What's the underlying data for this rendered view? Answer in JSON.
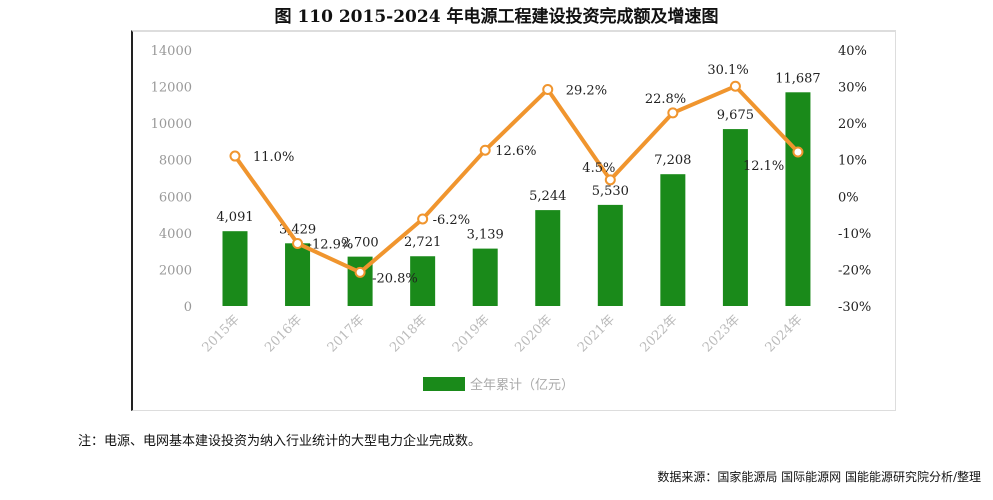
{
  "title": "图 110 2015-2024 年电源工程建设投资完成额及增速图",
  "note": "注：电源、电网基本建设投资为纳入行业统计的大型电力企业完成数。",
  "source": "数据来源：国家能源局 国际能源网 国能能源研究院分析/整理",
  "chart_data": {
    "type": "bar+line",
    "categories": [
      "2015年",
      "2016年",
      "2017年",
      "2018年",
      "2019年",
      "2020年",
      "2021年",
      "2022年",
      "2023年",
      "2024年"
    ],
    "series": [
      {
        "name": "全年累计（亿元）",
        "type": "bar",
        "axis": "left",
        "color": "#1a8a1a",
        "values": [
          4091,
          3429,
          2700,
          2721,
          3139,
          5244,
          5530,
          7208,
          9675,
          11687
        ],
        "labels": [
          "4,091",
          "3,429",
          "2,700",
          "2,721",
          "3,139",
          "5,244",
          "5,530",
          "7,208",
          "9,675",
          "11,687"
        ]
      },
      {
        "type": "line",
        "axis": "right",
        "color": "#f0952e",
        "values": [
          11.0,
          -12.9,
          -20.8,
          -6.2,
          12.6,
          29.2,
          4.5,
          22.8,
          30.1,
          12.1
        ],
        "labels": [
          "11.0%",
          "-12.9%",
          "-20.8%",
          "-6.2%",
          "12.6%",
          "29.2%",
          "4.5%",
          "22.8%",
          "30.1%",
          "12.1%"
        ]
      }
    ],
    "y_left": {
      "range": [
        0,
        14000
      ],
      "ticks": [
        "0",
        "2000",
        "4000",
        "6000",
        "8000",
        "10000",
        "12000",
        "14000"
      ]
    },
    "y_right": {
      "range": [
        -30,
        40
      ],
      "ticks": [
        "-30%",
        "-20%",
        "-10%",
        "0%",
        "10%",
        "20%",
        "30%",
        "40%"
      ]
    },
    "legend": "bottom",
    "grid": false
  }
}
